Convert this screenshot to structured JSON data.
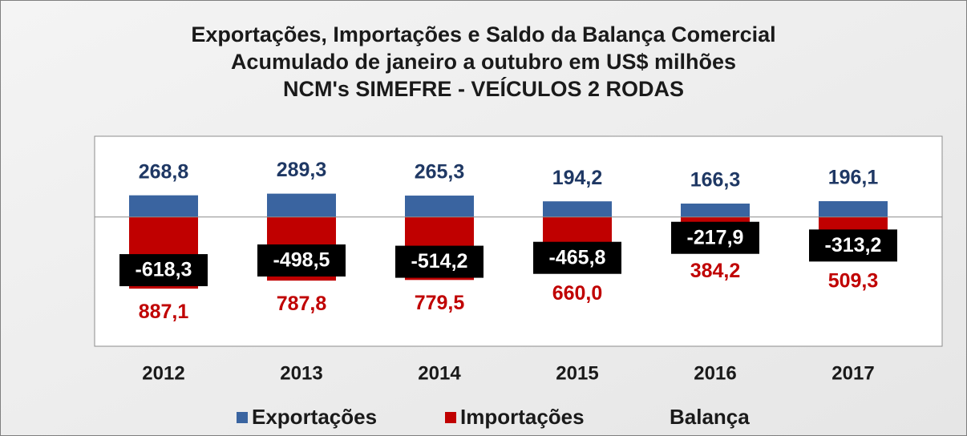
{
  "chart_data": {
    "type": "bar",
    "title": [
      "Exportações, Importações e Saldo da Balança Comercial",
      "Acumulado de janeiro a outubro em US$ milhões",
      "NCM's SIMEFRE - VEÍCULOS 2 RODAS"
    ],
    "categories": [
      "2012",
      "2013",
      "2014",
      "2015",
      "2016",
      "2017"
    ],
    "series": [
      {
        "name": "Exportações",
        "color": "#3a64a0",
        "values": [
          268.8,
          289.3,
          265.3,
          194.2,
          166.3,
          196.1
        ],
        "value_labels": [
          "268,8",
          "289,3",
          "265,3",
          "194,2",
          "166,3",
          "196,1"
        ]
      },
      {
        "name": "Importações",
        "color": "#c00000",
        "values": [
          -887.1,
          -787.8,
          -779.5,
          -660.0,
          -384.2,
          -509.3
        ],
        "value_labels": [
          "887,1",
          "787,8",
          "779,5",
          "660,0",
          "384,2",
          "509,3"
        ]
      },
      {
        "name": "Balança",
        "color": "#000000",
        "values": [
          -618.3,
          -498.5,
          -514.2,
          -465.8,
          -217.9,
          -313.2
        ],
        "value_labels": [
          "-618,3",
          "-498,5",
          "-514,2",
          "-465,8",
          "-217,9",
          "-313,2"
        ]
      }
    ],
    "ylim": [
      -1600,
      1000
    ]
  }
}
